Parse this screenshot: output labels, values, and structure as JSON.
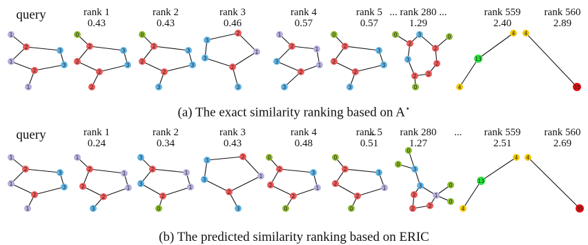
{
  "colors": {
    "lavender": "#b5b1dd",
    "blue": "#5fb4e6",
    "red": "#ec5a5a",
    "olive": "#8dbb2e",
    "yellow": "#f3cb06",
    "green": "#27e23b",
    "darkred": "#e21010"
  },
  "panel_a": {
    "caption_text": "(a) The exact similarity ranking based on A",
    "caption_star": "⋆",
    "headers": [
      {
        "rank": "query",
        "score": ""
      },
      {
        "rank": "rank 1",
        "score": "0.43"
      },
      {
        "rank": "rank 2",
        "score": "0.43"
      },
      {
        "rank": "rank 3",
        "score": "0.46"
      },
      {
        "rank": "rank 4",
        "score": "0.57"
      },
      {
        "rank": "rank 5",
        "score": "0.57"
      },
      {
        "rank": "... rank 280 ...",
        "score": "1.29"
      },
      {
        "rank": "rank 559",
        "score": "2.40"
      },
      {
        "rank": "rank 560",
        "score": "2.89"
      }
    ],
    "graphs": [
      {
        "nodes": [
          {
            "l": "1",
            "c": "lavender"
          },
          {
            "l": "1",
            "c": "lavender"
          },
          {
            "l": "2",
            "c": "red"
          },
          {
            "l": "3",
            "c": "blue"
          },
          {
            "l": "2",
            "c": "red"
          },
          {
            "l": "3",
            "c": "blue"
          },
          {
            "l": "1",
            "c": "lavender"
          }
        ]
      },
      {
        "nodes": [
          {
            "l": "0",
            "c": "olive"
          },
          {
            "l": "2",
            "c": "red"
          },
          {
            "l": "3",
            "c": "blue"
          },
          {
            "l": "2",
            "c": "red"
          },
          {
            "l": "2",
            "c": "red"
          },
          {
            "l": "3",
            "c": "blue"
          },
          {
            "l": "2",
            "c": "red"
          }
        ]
      },
      {
        "nodes": [
          {
            "l": "0",
            "c": "olive"
          },
          {
            "l": "2",
            "c": "red"
          },
          {
            "l": "3",
            "c": "blue"
          },
          {
            "l": "2",
            "c": "red"
          },
          {
            "l": "2",
            "c": "red"
          },
          {
            "l": "3",
            "c": "blue"
          },
          {
            "l": "3",
            "c": "blue"
          }
        ]
      },
      {
        "nodes": [
          {
            "l": "3",
            "c": "blue"
          },
          {
            "l": "2",
            "c": "red"
          },
          {
            "l": "1",
            "c": "lavender"
          },
          {
            "l": "3",
            "c": "blue"
          },
          {
            "l": "2",
            "c": "red"
          },
          {
            "l": "3",
            "c": "blue"
          }
        ]
      },
      {
        "nodes": [
          {
            "l": "1",
            "c": "lavender"
          },
          {
            "l": "2",
            "c": "red"
          },
          {
            "l": "1",
            "c": "lavender"
          },
          {
            "l": "3",
            "c": "blue"
          },
          {
            "l": "2",
            "c": "red"
          },
          {
            "l": "1",
            "c": "lavender"
          },
          {
            "l": "3",
            "c": "blue"
          }
        ]
      },
      {
        "nodes": [
          {
            "l": "0",
            "c": "olive"
          },
          {
            "l": "2",
            "c": "red"
          },
          {
            "l": "3",
            "c": "blue"
          },
          {
            "l": "2",
            "c": "red"
          },
          {
            "l": "2",
            "c": "red"
          },
          {
            "l": "3",
            "c": "blue"
          },
          {
            "l": "3",
            "c": "blue"
          }
        ]
      },
      {
        "nodes": [
          {
            "l": "0",
            "c": "olive"
          },
          {
            "l": "2",
            "c": "red"
          },
          {
            "l": "3",
            "c": "blue"
          },
          {
            "l": "0",
            "c": "olive"
          },
          {
            "l": "2",
            "c": "red"
          },
          {
            "l": "3",
            "c": "blue"
          },
          {
            "l": "2",
            "c": "red"
          },
          {
            "l": "2",
            "c": "red"
          },
          {
            "l": "2",
            "c": "red"
          },
          {
            "l": "0",
            "c": "olive"
          }
        ]
      },
      {
        "nodes": [
          {
            "l": "4",
            "c": "yellow"
          },
          {
            "l": "13",
            "c": "green"
          },
          {
            "l": "4",
            "c": "yellow"
          }
        ]
      },
      {
        "nodes": [
          {
            "l": "4",
            "c": "yellow"
          },
          {
            "l": "35",
            "c": "darkred"
          }
        ]
      }
    ]
  },
  "panel_b": {
    "caption_text": "(b) The predicted similarity ranking based on ERIC",
    "headers": [
      {
        "rank": "query",
        "score": ""
      },
      {
        "rank": "rank 1",
        "score": "0.24"
      },
      {
        "rank": "rank 2",
        "score": "0.34"
      },
      {
        "rank": "rank 3",
        "score": "0.43"
      },
      {
        "rank": "rank 4",
        "score": "0.48"
      },
      {
        "rank": "rank 5",
        "score": "0.51"
      },
      {
        "rank": "rank 280",
        "score": "1.27"
      },
      {
        "rank": "rank 559",
        "score": "2.51"
      },
      {
        "rank": "rank 560",
        "score": "2.69"
      }
    ],
    "dots": "...",
    "graphs": [
      {
        "nodes": [
          {
            "l": "1",
            "c": "lavender"
          },
          {
            "l": "1",
            "c": "lavender"
          },
          {
            "l": "2",
            "c": "red"
          },
          {
            "l": "3",
            "c": "blue"
          },
          {
            "l": "2",
            "c": "red"
          },
          {
            "l": "3",
            "c": "blue"
          },
          {
            "l": "1",
            "c": "lavender"
          }
        ]
      },
      {
        "nodes": [
          {
            "l": "1",
            "c": "lavender"
          },
          {
            "l": "2",
            "c": "red"
          },
          {
            "l": "1",
            "c": "lavender"
          },
          {
            "l": "2",
            "c": "red"
          },
          {
            "l": "2",
            "c": "red"
          },
          {
            "l": "1",
            "c": "lavender"
          },
          {
            "l": "3",
            "c": "blue"
          }
        ]
      },
      {
        "nodes": [
          {
            "l": "3",
            "c": "blue"
          },
          {
            "l": "2",
            "c": "red"
          },
          {
            "l": "1",
            "c": "lavender"
          },
          {
            "l": "3",
            "c": "blue"
          },
          {
            "l": "2",
            "c": "red"
          },
          {
            "l": "1",
            "c": "lavender"
          },
          {
            "l": "0",
            "c": "olive"
          }
        ]
      },
      {
        "nodes": [
          {
            "l": "3",
            "c": "blue"
          },
          {
            "l": "2",
            "c": "red"
          },
          {
            "l": "1",
            "c": "lavender"
          },
          {
            "l": "3",
            "c": "blue"
          },
          {
            "l": "2",
            "c": "red"
          },
          {
            "l": "3",
            "c": "blue"
          }
        ]
      },
      {
        "nodes": [
          {
            "l": "0",
            "c": "olive"
          },
          {
            "l": "2",
            "c": "red"
          },
          {
            "l": "3",
            "c": "blue"
          },
          {
            "l": "2",
            "c": "red"
          },
          {
            "l": "2",
            "c": "red"
          },
          {
            "l": "1",
            "c": "lavender"
          },
          {
            "l": "0",
            "c": "olive"
          }
        ]
      },
      {
        "nodes": [
          {
            "l": "0",
            "c": "olive"
          },
          {
            "l": "2",
            "c": "red"
          },
          {
            "l": "3",
            "c": "blue"
          },
          {
            "l": "2",
            "c": "red"
          },
          {
            "l": "2",
            "c": "red"
          },
          {
            "l": "1",
            "c": "lavender"
          },
          {
            "l": "0",
            "c": "olive"
          }
        ]
      },
      {
        "nodes": [
          {
            "l": "0",
            "c": "olive"
          },
          {
            "l": "3",
            "c": "blue"
          },
          {
            "l": "0",
            "c": "olive"
          },
          {
            "l": "3",
            "c": "blue"
          },
          {
            "l": "1",
            "c": "lavender"
          },
          {
            "l": "0",
            "c": "olive"
          },
          {
            "l": "2",
            "c": "red"
          },
          {
            "l": "2",
            "c": "red"
          },
          {
            "l": "0",
            "c": "olive"
          },
          {
            "l": "2",
            "c": "red"
          }
        ]
      },
      {
        "nodes": [
          {
            "l": "4",
            "c": "yellow"
          },
          {
            "l": "13",
            "c": "green"
          },
          {
            "l": "4",
            "c": "yellow"
          }
        ]
      },
      {
        "nodes": [
          {
            "l": "4",
            "c": "yellow"
          },
          {
            "l": "35",
            "c": "darkred"
          }
        ]
      }
    ]
  }
}
